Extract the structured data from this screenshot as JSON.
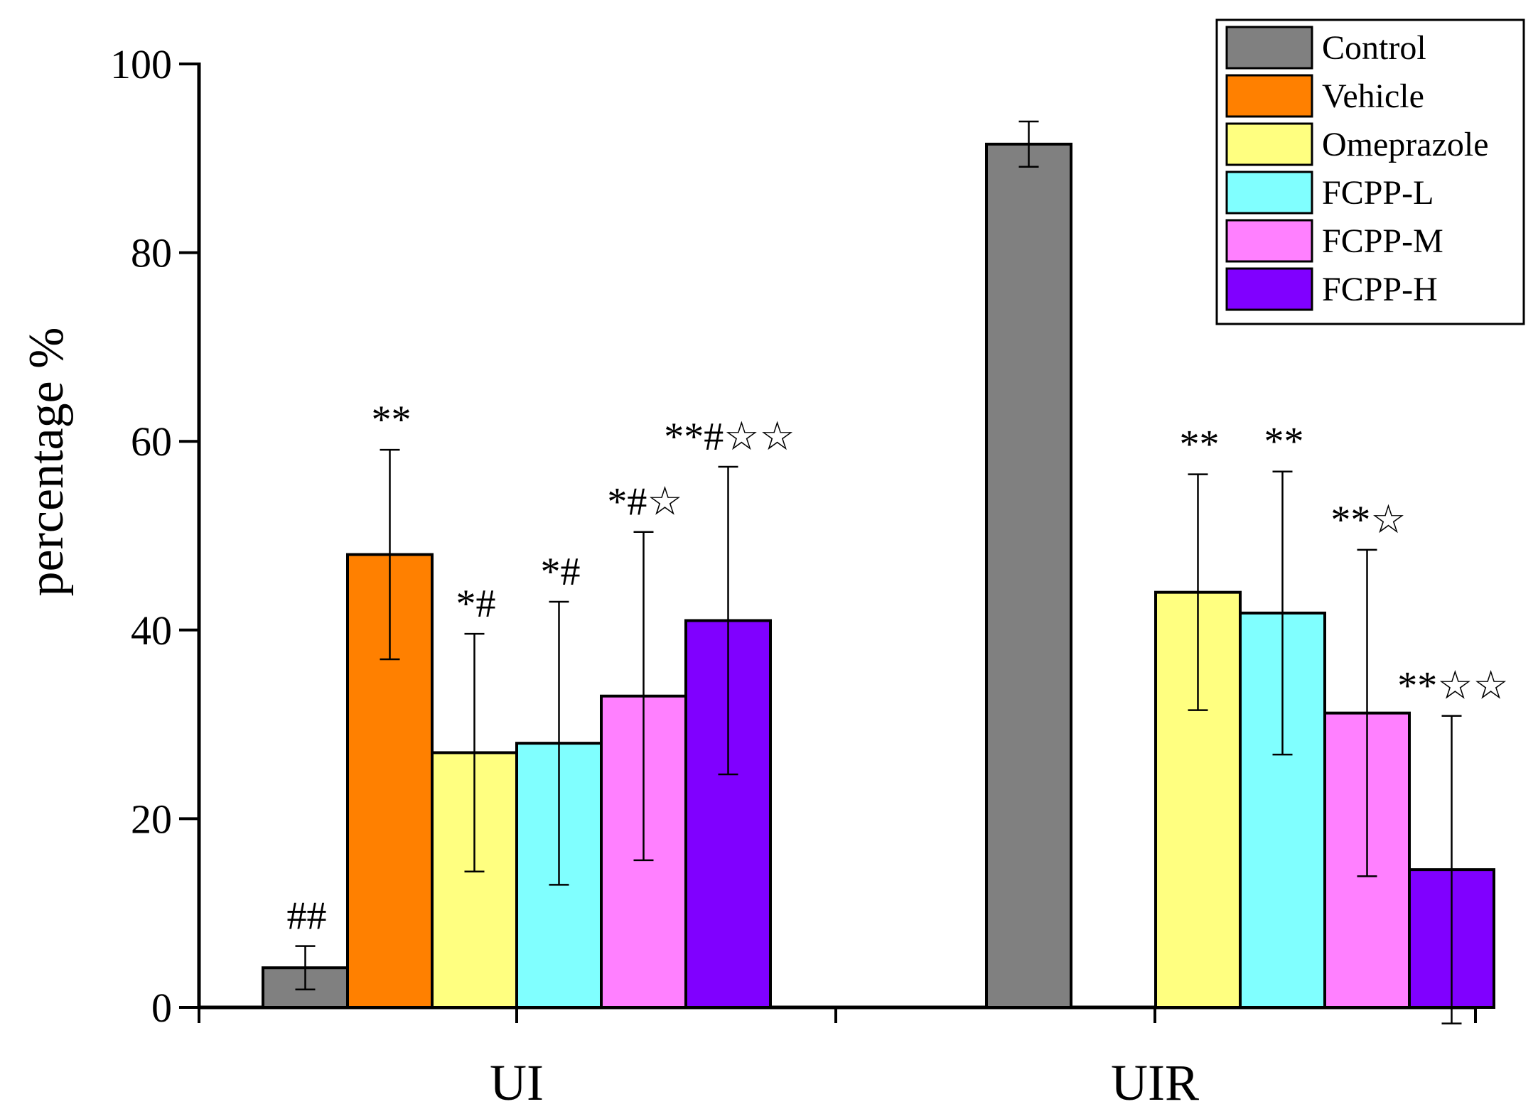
{
  "chart_data": {
    "type": "bar",
    "title": "",
    "xlabel": "",
    "ylabel": "percentage %",
    "ylim": [
      0,
      100
    ],
    "yticks": [
      "0",
      "20",
      "40",
      "60",
      "80",
      "100"
    ],
    "grid": false,
    "legend_position": "top-right",
    "categories": [
      "UI",
      "UIR"
    ],
    "series": [
      {
        "name": "Control",
        "color": "#808080",
        "values": [
          4.2,
          91.5
        ],
        "errors": [
          2.3,
          2.4
        ],
        "annotations": [
          "##",
          ""
        ]
      },
      {
        "name": "Vehicle",
        "color": "#FF8000",
        "values": [
          48.0,
          0
        ],
        "errors": [
          11.1,
          0
        ],
        "annotations": [
          "**",
          ""
        ]
      },
      {
        "name": "Omeprazole",
        "color": "#FFFF80",
        "values": [
          27.0,
          44.0
        ],
        "errors": [
          12.6,
          12.5
        ],
        "annotations": [
          "*#",
          "**"
        ]
      },
      {
        "name": "FCPP-L",
        "color": "#80FFFF",
        "values": [
          28.0,
          41.8
        ],
        "errors": [
          15.0,
          15.0
        ],
        "annotations": [
          "*#",
          "**"
        ]
      },
      {
        "name": "FCPP-M",
        "color": "#FF80FF",
        "values": [
          33.0,
          31.2
        ],
        "errors": [
          17.4,
          17.3
        ],
        "annotations": [
          "*#☆",
          "**☆"
        ]
      },
      {
        "name": "FCPP-H",
        "color": "#8000FF",
        "values": [
          41.0,
          14.6
        ],
        "errors": [
          16.3,
          16.3
        ],
        "annotations": [
          "**#☆☆",
          "**☆☆"
        ]
      }
    ]
  }
}
